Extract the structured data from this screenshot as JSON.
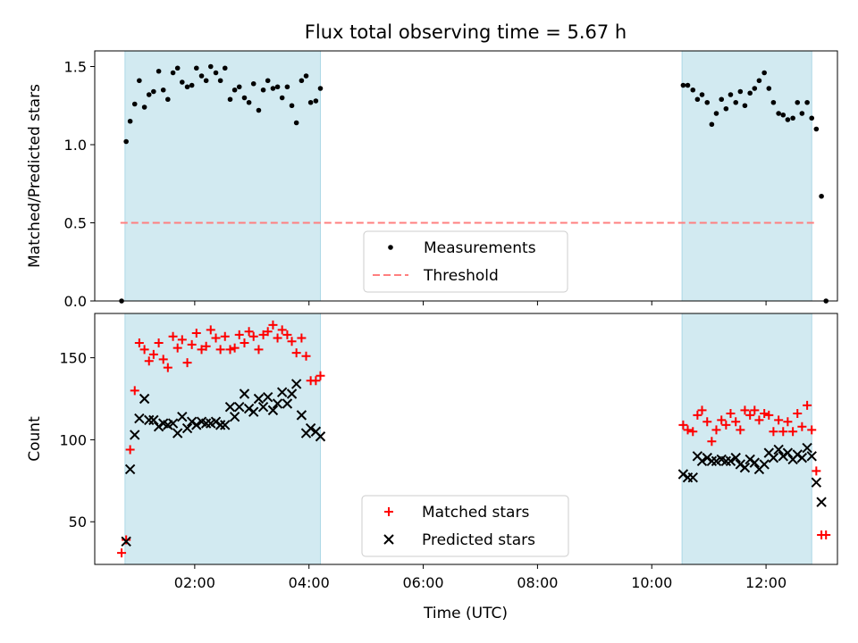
{
  "title": "Flux total observing time = 5.67 h",
  "xlabel": "Time (UTC)",
  "colors": {
    "shade": "#add8e6",
    "threshold": "#ff7f7f",
    "matched": "#ff0000",
    "predicted": "#000000",
    "measurement": "#000000"
  },
  "chart_data": [
    {
      "type": "scatter",
      "ylabel": "Matched/Predicted stars",
      "xlim": [
        0.25,
        13.25
      ],
      "ylim": [
        0,
        1.6
      ],
      "yticks": [
        0,
        0.5,
        1.0,
        1.5
      ],
      "yticklabels": [
        "0.0",
        "0.5",
        "1.0",
        "1.5"
      ],
      "xticks": [
        2,
        4,
        6,
        8,
        10,
        12
      ],
      "xticklabels": [
        "",
        "",
        "",
        "",
        "",
        ""
      ],
      "legend_location": "lower center",
      "shaded_intervals": [
        [
          0.78,
          4.2
        ],
        [
          10.53,
          12.8
        ]
      ],
      "threshold": {
        "name": "Threshold",
        "value": 0.5,
        "x_range": [
          0.7,
          12.9
        ],
        "style": "dashed"
      },
      "series": [
        {
          "name": "Measurements",
          "marker": "dot",
          "points": [
            [
              0.72,
              0.0
            ],
            [
              0.8,
              1.02
            ],
            [
              0.87,
              1.15
            ],
            [
              0.95,
              1.26
            ],
            [
              1.03,
              1.41
            ],
            [
              1.12,
              1.24
            ],
            [
              1.2,
              1.32
            ],
            [
              1.28,
              1.34
            ],
            [
              1.37,
              1.47
            ],
            [
              1.45,
              1.35
            ],
            [
              1.53,
              1.29
            ],
            [
              1.62,
              1.46
            ],
            [
              1.7,
              1.49
            ],
            [
              1.78,
              1.4
            ],
            [
              1.87,
              1.37
            ],
            [
              1.95,
              1.38
            ],
            [
              2.03,
              1.49
            ],
            [
              2.12,
              1.44
            ],
            [
              2.2,
              1.41
            ],
            [
              2.28,
              1.5
            ],
            [
              2.37,
              1.46
            ],
            [
              2.45,
              1.41
            ],
            [
              2.53,
              1.49
            ],
            [
              2.62,
              1.29
            ],
            [
              2.7,
              1.35
            ],
            [
              2.78,
              1.37
            ],
            [
              2.87,
              1.3
            ],
            [
              2.95,
              1.27
            ],
            [
              3.03,
              1.39
            ],
            [
              3.12,
              1.22
            ],
            [
              3.2,
              1.35
            ],
            [
              3.28,
              1.41
            ],
            [
              3.37,
              1.36
            ],
            [
              3.45,
              1.37
            ],
            [
              3.53,
              1.3
            ],
            [
              3.62,
              1.37
            ],
            [
              3.7,
              1.25
            ],
            [
              3.78,
              1.14
            ],
            [
              3.87,
              1.41
            ],
            [
              3.95,
              1.44
            ],
            [
              4.03,
              1.27
            ],
            [
              4.12,
              1.28
            ],
            [
              4.2,
              1.36
            ],
            [
              10.55,
              1.38
            ],
            [
              10.63,
              1.38
            ],
            [
              10.72,
              1.35
            ],
            [
              10.8,
              1.29
            ],
            [
              10.88,
              1.32
            ],
            [
              10.97,
              1.27
            ],
            [
              11.05,
              1.13
            ],
            [
              11.13,
              1.2
            ],
            [
              11.22,
              1.29
            ],
            [
              11.3,
              1.23
            ],
            [
              11.38,
              1.32
            ],
            [
              11.47,
              1.27
            ],
            [
              11.55,
              1.34
            ],
            [
              11.63,
              1.25
            ],
            [
              11.72,
              1.33
            ],
            [
              11.8,
              1.36
            ],
            [
              11.88,
              1.41
            ],
            [
              11.97,
              1.46
            ],
            [
              12.05,
              1.36
            ],
            [
              12.13,
              1.27
            ],
            [
              12.22,
              1.2
            ],
            [
              12.3,
              1.19
            ],
            [
              12.38,
              1.16
            ],
            [
              12.47,
              1.17
            ],
            [
              12.55,
              1.27
            ],
            [
              12.63,
              1.2
            ],
            [
              12.72,
              1.27
            ],
            [
              12.8,
              1.17
            ],
            [
              12.88,
              1.1
            ],
            [
              12.97,
              0.67
            ],
            [
              13.05,
              0.0
            ]
          ]
        }
      ]
    },
    {
      "type": "scatter",
      "ylabel": "Count",
      "xlim": [
        0.25,
        13.25
      ],
      "ylim": [
        24,
        177
      ],
      "yticks": [
        50,
        100,
        150
      ],
      "yticklabels": [
        "50",
        "100",
        "150"
      ],
      "xticks": [
        2,
        4,
        6,
        8,
        10,
        12
      ],
      "xticklabels": [
        "02:00",
        "04:00",
        "06:00",
        "08:00",
        "10:00",
        "12:00"
      ],
      "legend_location": "lower center",
      "shaded_intervals": [
        [
          0.78,
          4.2
        ],
        [
          10.53,
          12.8
        ]
      ],
      "series": [
        {
          "name": "Matched stars",
          "marker": "plus",
          "points": [
            [
              0.72,
              31
            ],
            [
              0.8,
              39
            ],
            [
              0.87,
              94
            ],
            [
              0.95,
              130
            ],
            [
              1.03,
              159
            ],
            [
              1.12,
              155
            ],
            [
              1.2,
              148
            ],
            [
              1.28,
              152
            ],
            [
              1.37,
              159
            ],
            [
              1.45,
              149
            ],
            [
              1.53,
              144
            ],
            [
              1.62,
              163
            ],
            [
              1.7,
              156
            ],
            [
              1.78,
              161
            ],
            [
              1.87,
              147
            ],
            [
              1.95,
              158
            ],
            [
              2.03,
              165
            ],
            [
              2.12,
              155
            ],
            [
              2.2,
              157
            ],
            [
              2.28,
              167
            ],
            [
              2.37,
              162
            ],
            [
              2.45,
              155
            ],
            [
              2.53,
              163
            ],
            [
              2.62,
              155
            ],
            [
              2.7,
              156
            ],
            [
              2.78,
              164
            ],
            [
              2.87,
              159
            ],
            [
              2.95,
              166
            ],
            [
              3.03,
              163
            ],
            [
              3.12,
              155
            ],
            [
              3.2,
              164
            ],
            [
              3.28,
              166
            ],
            [
              3.37,
              170
            ],
            [
              3.45,
              162
            ],
            [
              3.53,
              167
            ],
            [
              3.62,
              164
            ],
            [
              3.7,
              160
            ],
            [
              3.78,
              153
            ],
            [
              3.87,
              162
            ],
            [
              3.95,
              151
            ],
            [
              4.03,
              136
            ],
            [
              4.12,
              136
            ],
            [
              4.2,
              139
            ],
            [
              10.55,
              109
            ],
            [
              10.63,
              106
            ],
            [
              10.72,
              105
            ],
            [
              10.8,
              115
            ],
            [
              10.88,
              118
            ],
            [
              10.97,
              111
            ],
            [
              11.05,
              99
            ],
            [
              11.13,
              106
            ],
            [
              11.22,
              112
            ],
            [
              11.3,
              109
            ],
            [
              11.38,
              116
            ],
            [
              11.47,
              111
            ],
            [
              11.55,
              106
            ],
            [
              11.63,
              118
            ],
            [
              11.72,
              115
            ],
            [
              11.8,
              118
            ],
            [
              11.88,
              112
            ],
            [
              11.97,
              116
            ],
            [
              12.05,
              115
            ],
            [
              12.13,
              105
            ],
            [
              12.22,
              112
            ],
            [
              12.3,
              105
            ],
            [
              12.38,
              111
            ],
            [
              12.47,
              105
            ],
            [
              12.55,
              116
            ],
            [
              12.63,
              108
            ],
            [
              12.72,
              121
            ],
            [
              12.8,
              106
            ],
            [
              12.88,
              81
            ],
            [
              12.97,
              42
            ],
            [
              13.05,
              42
            ]
          ]
        },
        {
          "name": "Predicted stars",
          "marker": "x",
          "points": [
            [
              0.8,
              38
            ],
            [
              0.87,
              82
            ],
            [
              0.95,
              103
            ],
            [
              1.03,
              113
            ],
            [
              1.12,
              125
            ],
            [
              1.2,
              112
            ],
            [
              1.28,
              112
            ],
            [
              1.37,
              108
            ],
            [
              1.45,
              110
            ],
            [
              1.53,
              109
            ],
            [
              1.62,
              110
            ],
            [
              1.7,
              104
            ],
            [
              1.78,
              114
            ],
            [
              1.87,
              107
            ],
            [
              1.95,
              111
            ],
            [
              2.03,
              109
            ],
            [
              2.12,
              111
            ],
            [
              2.2,
              110
            ],
            [
              2.28,
              110
            ],
            [
              2.37,
              111
            ],
            [
              2.45,
              109
            ],
            [
              2.53,
              109
            ],
            [
              2.62,
              120
            ],
            [
              2.7,
              114
            ],
            [
              2.78,
              120
            ],
            [
              2.87,
              128
            ],
            [
              2.95,
              119
            ],
            [
              3.03,
              117
            ],
            [
              3.12,
              125
            ],
            [
              3.2,
              120
            ],
            [
              3.28,
              126
            ],
            [
              3.37,
              118
            ],
            [
              3.45,
              122
            ],
            [
              3.53,
              129
            ],
            [
              3.62,
              122
            ],
            [
              3.7,
              128
            ],
            [
              3.78,
              134
            ],
            [
              3.87,
              115
            ],
            [
              3.95,
              104
            ],
            [
              4.03,
              107
            ],
            [
              4.12,
              105
            ],
            [
              4.2,
              102
            ],
            [
              10.55,
              79
            ],
            [
              10.63,
              77
            ],
            [
              10.72,
              77
            ],
            [
              10.8,
              90
            ],
            [
              10.88,
              87
            ],
            [
              10.97,
              89
            ],
            [
              11.05,
              87
            ],
            [
              11.13,
              87
            ],
            [
              11.22,
              88
            ],
            [
              11.3,
              87
            ],
            [
              11.38,
              87
            ],
            [
              11.47,
              89
            ],
            [
              11.55,
              85
            ],
            [
              11.63,
              83
            ],
            [
              11.72,
              88
            ],
            [
              11.8,
              86
            ],
            [
              11.88,
              82
            ],
            [
              11.97,
              85
            ],
            [
              12.05,
              92
            ],
            [
              12.13,
              89
            ],
            [
              12.22,
              94
            ],
            [
              12.3,
              90
            ],
            [
              12.38,
              92
            ],
            [
              12.47,
              88
            ],
            [
              12.55,
              91
            ],
            [
              12.63,
              89
            ],
            [
              12.72,
              95
            ],
            [
              12.8,
              90
            ],
            [
              12.88,
              74
            ],
            [
              12.97,
              62
            ]
          ]
        }
      ]
    }
  ]
}
